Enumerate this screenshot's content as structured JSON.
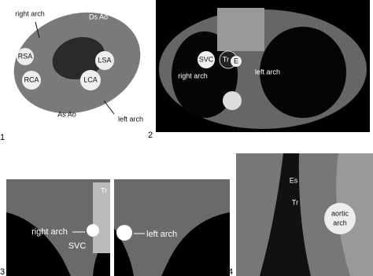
{
  "panels": [
    {
      "number": "1",
      "labels": [
        "right arch",
        "Ds Ao",
        "RSA",
        "LSA",
        "RCA",
        "LCA",
        "As Ao",
        "left arch"
      ]
    },
    {
      "number": "2",
      "labels": [
        "SVC",
        "Tr",
        "E",
        "right arch",
        "left arch"
      ]
    },
    {
      "number": "3",
      "labels": [
        "Tr",
        "right arch",
        "SVC",
        "left arch"
      ]
    },
    {
      "number": "4",
      "labels": [
        "Es",
        "Tr",
        "aortic",
        "arch"
      ]
    }
  ]
}
